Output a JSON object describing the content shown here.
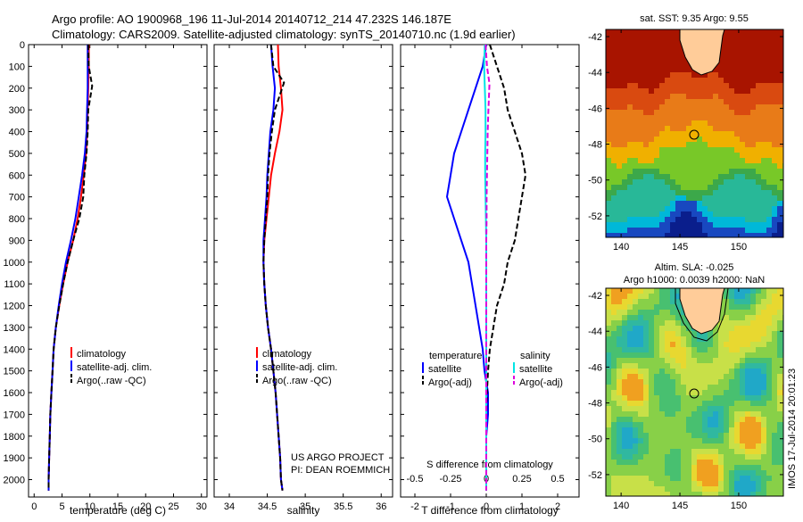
{
  "header": {
    "line1": "Argo profile: AO 1900968_196 11-Jul-2014 20140712_214 47.232S 146.187E",
    "line2": "Climatology: CARS2009. Satellite-adjusted climatology: synTS_20140710.nc (1.9d earlier)"
  },
  "colors": {
    "climatology": "#ff0000",
    "satellite": "#0000ff",
    "argo": "#000000",
    "sal_satellite": "#00e5e5",
    "sal_argo": "#dd00dd",
    "land": "#ffcc99"
  },
  "chart_data": [
    {
      "type": "line",
      "xlabel": "temperature (deg C)",
      "xlim": [
        -1,
        31
      ],
      "xticks": [
        0,
        5,
        10,
        15,
        20,
        25,
        30
      ],
      "ylim": [
        2080,
        0
      ],
      "yticks": [
        0,
        100,
        200,
        300,
        400,
        500,
        600,
        700,
        800,
        900,
        1000,
        1100,
        1200,
        1300,
        1400,
        1500,
        1600,
        1700,
        1800,
        1900,
        2000
      ],
      "legend": [
        "climatology",
        "satellite-adj. clim.",
        "Argo(..raw -QC)"
      ],
      "series": [
        {
          "name": "climatology",
          "color": "#ff0000",
          "dash": false,
          "x": [
            9.8,
            9.8,
            9.7,
            9.6,
            9.5,
            9.3,
            8.9,
            8.4,
            7.8,
            7.0,
            6.0,
            5.2,
            4.5,
            3.9,
            3.5,
            3.3,
            3.1,
            2.9,
            2.8,
            2.7,
            2.6,
            2.6
          ],
          "y": [
            0,
            100,
            200,
            300,
            400,
            500,
            600,
            700,
            800,
            900,
            1000,
            1100,
            1200,
            1300,
            1400,
            1500,
            1600,
            1700,
            1800,
            1900,
            2000,
            2050
          ]
        },
        {
          "name": "satellite-adj. clim.",
          "color": "#0000ff",
          "dash": false,
          "x": [
            9.6,
            9.6,
            9.6,
            9.5,
            9.4,
            9.1,
            8.6,
            8.0,
            7.4,
            6.6,
            5.7,
            5.0,
            4.4,
            3.9,
            3.5,
            3.3,
            3.1,
            2.9,
            2.8,
            2.7,
            2.6,
            2.6
          ],
          "y": [
            0,
            100,
            200,
            300,
            400,
            500,
            600,
            700,
            800,
            900,
            1000,
            1100,
            1200,
            1300,
            1400,
            1500,
            1600,
            1700,
            1800,
            1900,
            2000,
            2050
          ]
        },
        {
          "name": "Argo(..raw -QC)",
          "color": "#000000",
          "dash": true,
          "x": [
            9.7,
            9.8,
            10.4,
            9.7,
            9.6,
            9.4,
            9.0,
            8.8,
            8.1,
            7.0,
            6.0,
            5.2,
            4.5,
            3.9,
            3.5,
            3.3,
            3.1,
            2.9,
            2.8,
            2.7,
            2.6,
            2.6
          ],
          "y": [
            0,
            100,
            190,
            300,
            400,
            500,
            600,
            700,
            800,
            900,
            1000,
            1100,
            1200,
            1300,
            1400,
            1500,
            1600,
            1700,
            1800,
            1900,
            2000,
            2050
          ]
        }
      ]
    },
    {
      "type": "line",
      "xlabel": "salinity",
      "xlim": [
        33.8,
        36.15
      ],
      "xticks": [
        34,
        34.5,
        35,
        35.5,
        36
      ],
      "xticklabels": [
        "34",
        "34.5",
        "35",
        "35.5",
        "36"
      ],
      "ylim": [
        2080,
        0
      ],
      "legend": [
        "climatology",
        "satellite-adj. clim.",
        "Argo(..raw -QC)"
      ],
      "series": [
        {
          "name": "climatology",
          "color": "#ff0000",
          "dash": false,
          "x": [
            34.64,
            34.65,
            34.68,
            34.7,
            34.66,
            34.6,
            34.55,
            34.52,
            34.49,
            34.46,
            34.45,
            34.46,
            34.48,
            34.51,
            34.55,
            34.58,
            34.61,
            34.63,
            34.65,
            34.67,
            34.68,
            34.7
          ],
          "y": [
            0,
            100,
            200,
            300,
            400,
            500,
            600,
            700,
            800,
            900,
            1000,
            1100,
            1200,
            1300,
            1400,
            1500,
            1600,
            1700,
            1800,
            1900,
            2000,
            2050
          ]
        },
        {
          "name": "satellite-adj. clim.",
          "color": "#0000ff",
          "dash": false,
          "x": [
            34.55,
            34.57,
            34.6,
            34.58,
            34.54,
            34.52,
            34.5,
            34.49,
            34.47,
            34.45,
            34.45,
            34.46,
            34.48,
            34.51,
            34.55,
            34.58,
            34.61,
            34.63,
            34.65,
            34.67,
            34.68,
            34.7
          ],
          "y": [
            0,
            100,
            200,
            300,
            400,
            500,
            600,
            700,
            800,
            900,
            1000,
            1100,
            1200,
            1300,
            1400,
            1500,
            1600,
            1700,
            1800,
            1900,
            2000,
            2050
          ]
        },
        {
          "name": "Argo(..raw -QC)",
          "color": "#000000",
          "dash": true,
          "x": [
            34.55,
            34.58,
            34.72,
            34.6,
            34.56,
            34.53,
            34.51,
            34.5,
            34.48,
            34.46,
            34.45,
            34.46,
            34.48,
            34.51,
            34.55,
            34.58,
            34.61,
            34.63,
            34.65,
            34.67,
            34.68,
            34.7
          ],
          "y": [
            0,
            100,
            175,
            300,
            400,
            500,
            600,
            700,
            800,
            900,
            1000,
            1100,
            1200,
            1300,
            1400,
            1500,
            1600,
            1700,
            1800,
            1900,
            2000,
            2050
          ]
        }
      ],
      "annotation": [
        "US ARGO PROJECT",
        "PI: DEAN ROEMMICH"
      ]
    },
    {
      "type": "line",
      "xlabel": "T difference from climatology",
      "x2label": "S difference from climatology",
      "xlim": [
        -2.4,
        2.6
      ],
      "xticks": [
        -2,
        -1,
        0,
        1,
        2
      ],
      "x2lim": [
        -0.6,
        0.65
      ],
      "x2ticks": [
        -0.5,
        -0.25,
        0,
        0.25,
        0.5
      ],
      "ylim": [
        2080,
        0
      ],
      "legend_titles": [
        "temperature",
        "salinity"
      ],
      "legend": [
        "satellite",
        "Argo(-adj)",
        "satellite",
        "Argo(-adj)"
      ],
      "series": [
        {
          "name": "satellite",
          "group": "temperature",
          "color": "#0000ff",
          "dash": false,
          "x": [
            0,
            -0.1,
            -0.3,
            -0.5,
            -0.7,
            -0.9,
            -1.0,
            -1.1,
            -0.9,
            -0.7,
            -0.5,
            -0.4,
            -0.3,
            -0.2,
            -0.1,
            -0.05,
            0.05,
            0.05,
            0,
            0,
            0,
            0
          ],
          "y": [
            0,
            100,
            200,
            300,
            400,
            500,
            600,
            700,
            800,
            900,
            1000,
            1100,
            1200,
            1300,
            1400,
            1500,
            1600,
            1700,
            1800,
            1900,
            2000,
            2050
          ]
        },
        {
          "name": "Argo(-adj)",
          "group": "temperature",
          "color": "#000000",
          "dash": true,
          "x": [
            0.1,
            0.3,
            0.5,
            0.6,
            0.8,
            1.0,
            1.1,
            1.0,
            0.9,
            0.8,
            0.6,
            0.5,
            0.3,
            0.2,
            0.1,
            0.05,
            0.02,
            0,
            0,
            0,
            0,
            0
          ],
          "y": [
            0,
            100,
            200,
            300,
            400,
            500,
            600,
            700,
            800,
            900,
            1000,
            1100,
            1200,
            1300,
            1400,
            1500,
            1600,
            1700,
            1800,
            1900,
            2000,
            2050
          ]
        },
        {
          "name": "satellite",
          "group": "salinity",
          "color": "#00e5e5",
          "dash": false,
          "x": [
            -0.04,
            -0.06,
            -0.04,
            -0.02,
            -0.02,
            -0.03,
            -0.03,
            -0.02,
            -0.01,
            0,
            0,
            0,
            0,
            0,
            0,
            0,
            0,
            0,
            0,
            0,
            0,
            0
          ],
          "y": [
            0,
            100,
            200,
            300,
            400,
            500,
            600,
            700,
            800,
            900,
            1000,
            1100,
            1200,
            1300,
            1400,
            1500,
            1600,
            1700,
            1800,
            1900,
            2000,
            2050
          ]
        },
        {
          "name": "Argo(-adj)",
          "group": "salinity",
          "color": "#dd00dd",
          "dash": true,
          "x": [
            -0.02,
            0.02,
            0.09,
            0.06,
            0.04,
            0.03,
            0.02,
            0.01,
            0.01,
            0,
            0,
            0,
            0,
            0,
            0,
            0,
            0,
            0,
            0,
            0,
            0,
            0
          ],
          "y": [
            0,
            100,
            180,
            300,
            400,
            500,
            600,
            700,
            800,
            900,
            1000,
            1100,
            1200,
            1300,
            1400,
            1500,
            1600,
            1700,
            1800,
            1900,
            2000,
            2050
          ]
        }
      ]
    },
    {
      "type": "heatmap",
      "title": "sat. SST: 9.35 Argo: 9.55",
      "xticks": [
        140,
        145,
        150
      ],
      "yticks": [
        -42,
        -44,
        -46,
        -48,
        -50,
        -52
      ],
      "xlim": [
        138.7,
        153.8
      ],
      "ylim": [
        -53.2,
        -41.6
      ],
      "marker": {
        "lon": 146.187,
        "lat": -47.232
      }
    },
    {
      "type": "heatmap",
      "title": "Altim. SLA: -0.025",
      "subtitle": "Argo h1000: 0.0039 h2000: NaN",
      "xticks": [
        140,
        145,
        150
      ],
      "yticks": [
        -42,
        -44,
        -46,
        -48,
        -50,
        -52
      ],
      "xlim": [
        138.7,
        153.8
      ],
      "ylim": [
        -53.2,
        -41.6
      ],
      "marker": {
        "lon": 146.187,
        "lat": -47.232
      },
      "side_label": "IMOS 17-Jul-2014 20:01:23"
    }
  ]
}
